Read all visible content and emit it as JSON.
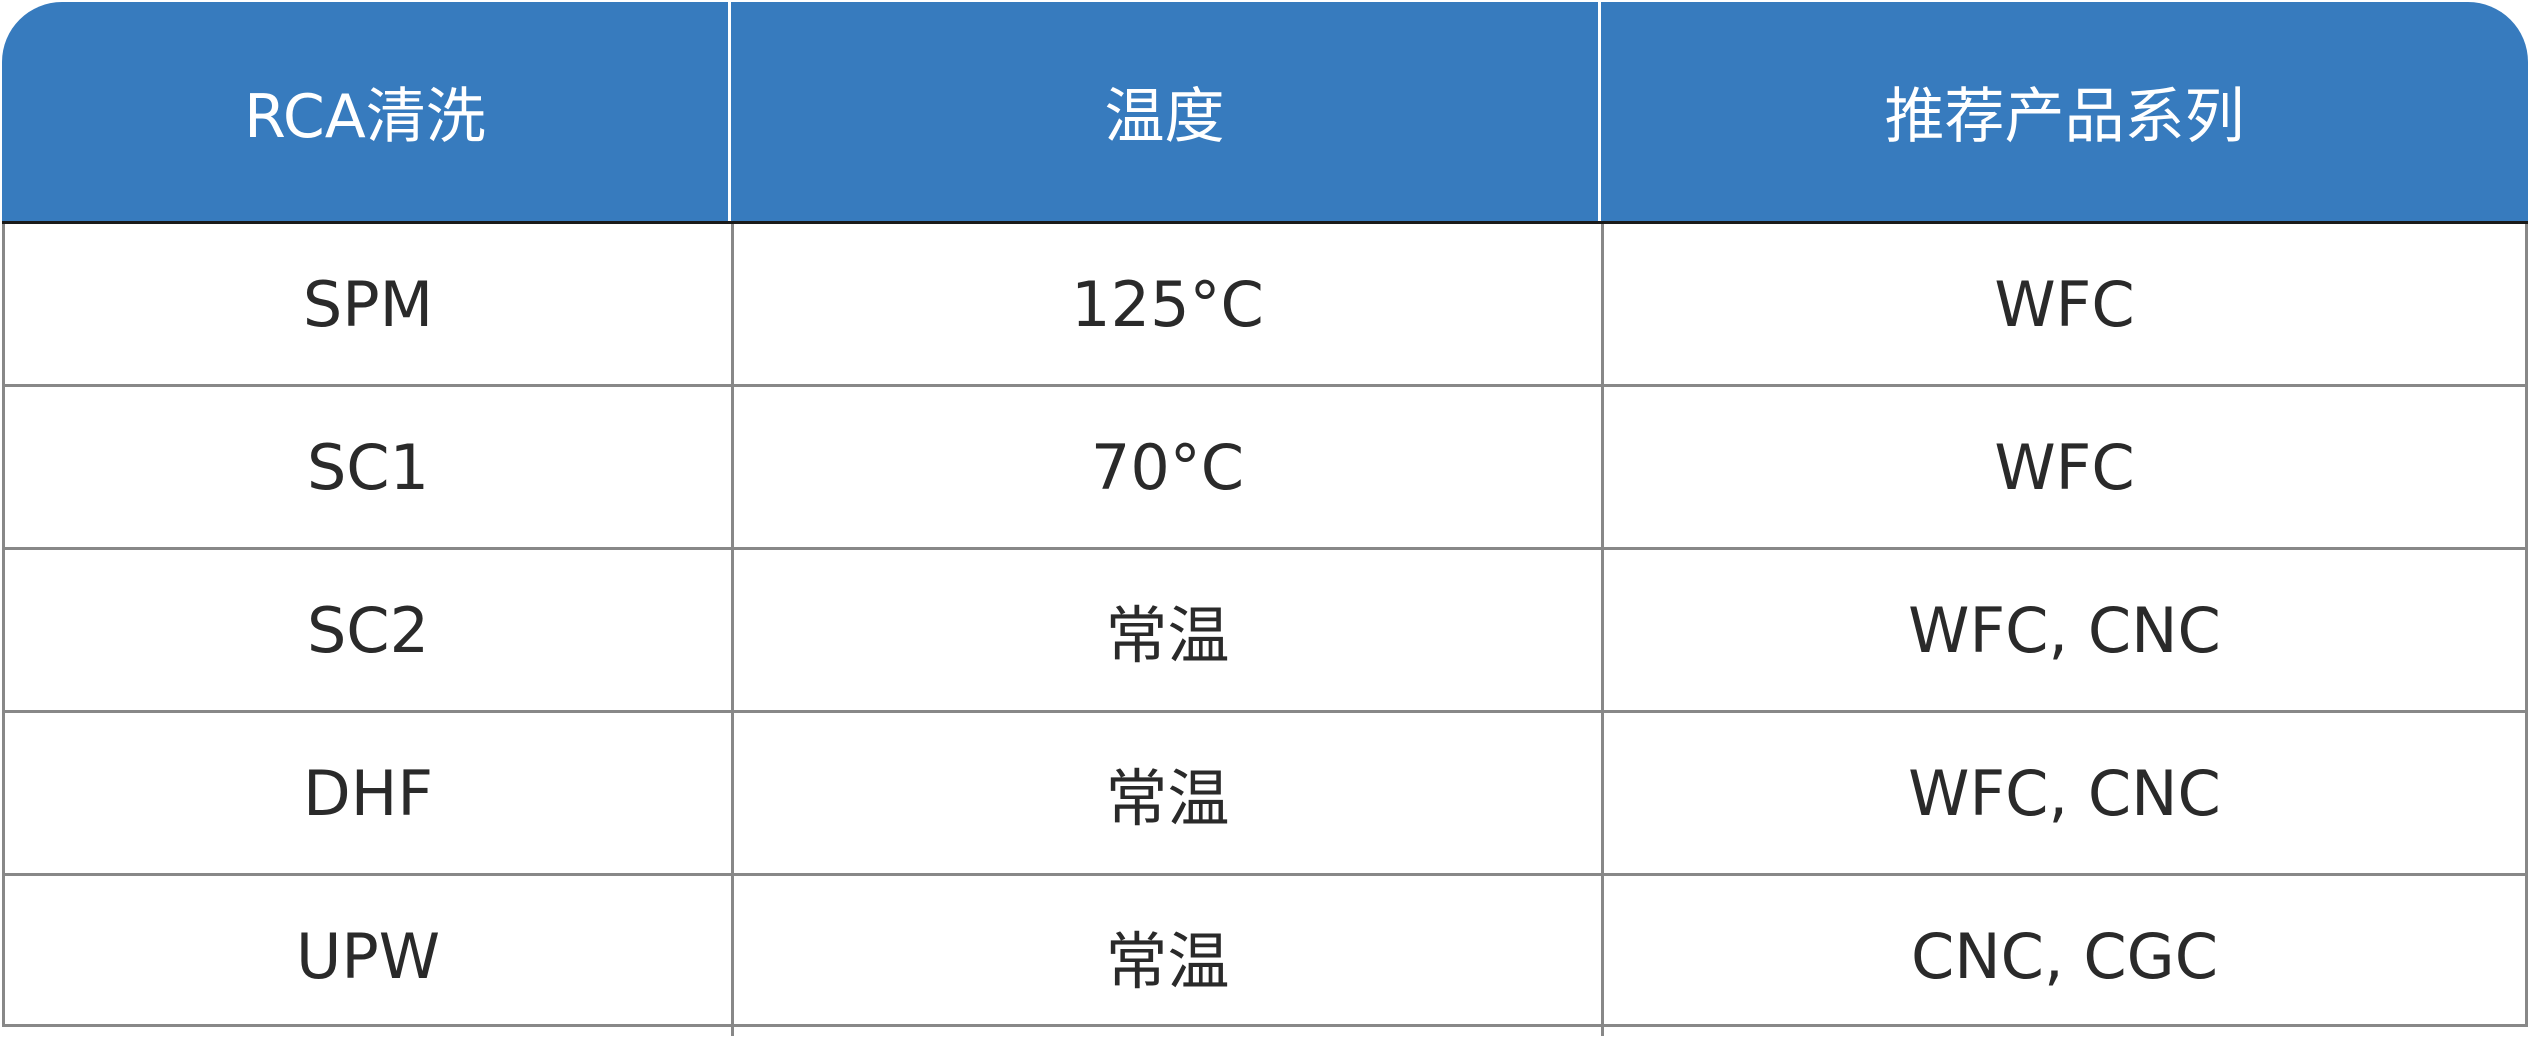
{
  "table": {
    "header_color": "#377bbe",
    "headers": [
      "RCA清洗",
      "温度",
      "推荐产品系列"
    ],
    "rows": [
      [
        "SPM",
        "125°C",
        "WFC"
      ],
      [
        "SC1",
        "70°C",
        "WFC"
      ],
      [
        "SC2",
        "常温",
        "WFC, CNC"
      ],
      [
        "DHF",
        "常温",
        "WFC, CNC"
      ],
      [
        "UPW",
        "常温",
        "CNC, CGC"
      ]
    ]
  }
}
